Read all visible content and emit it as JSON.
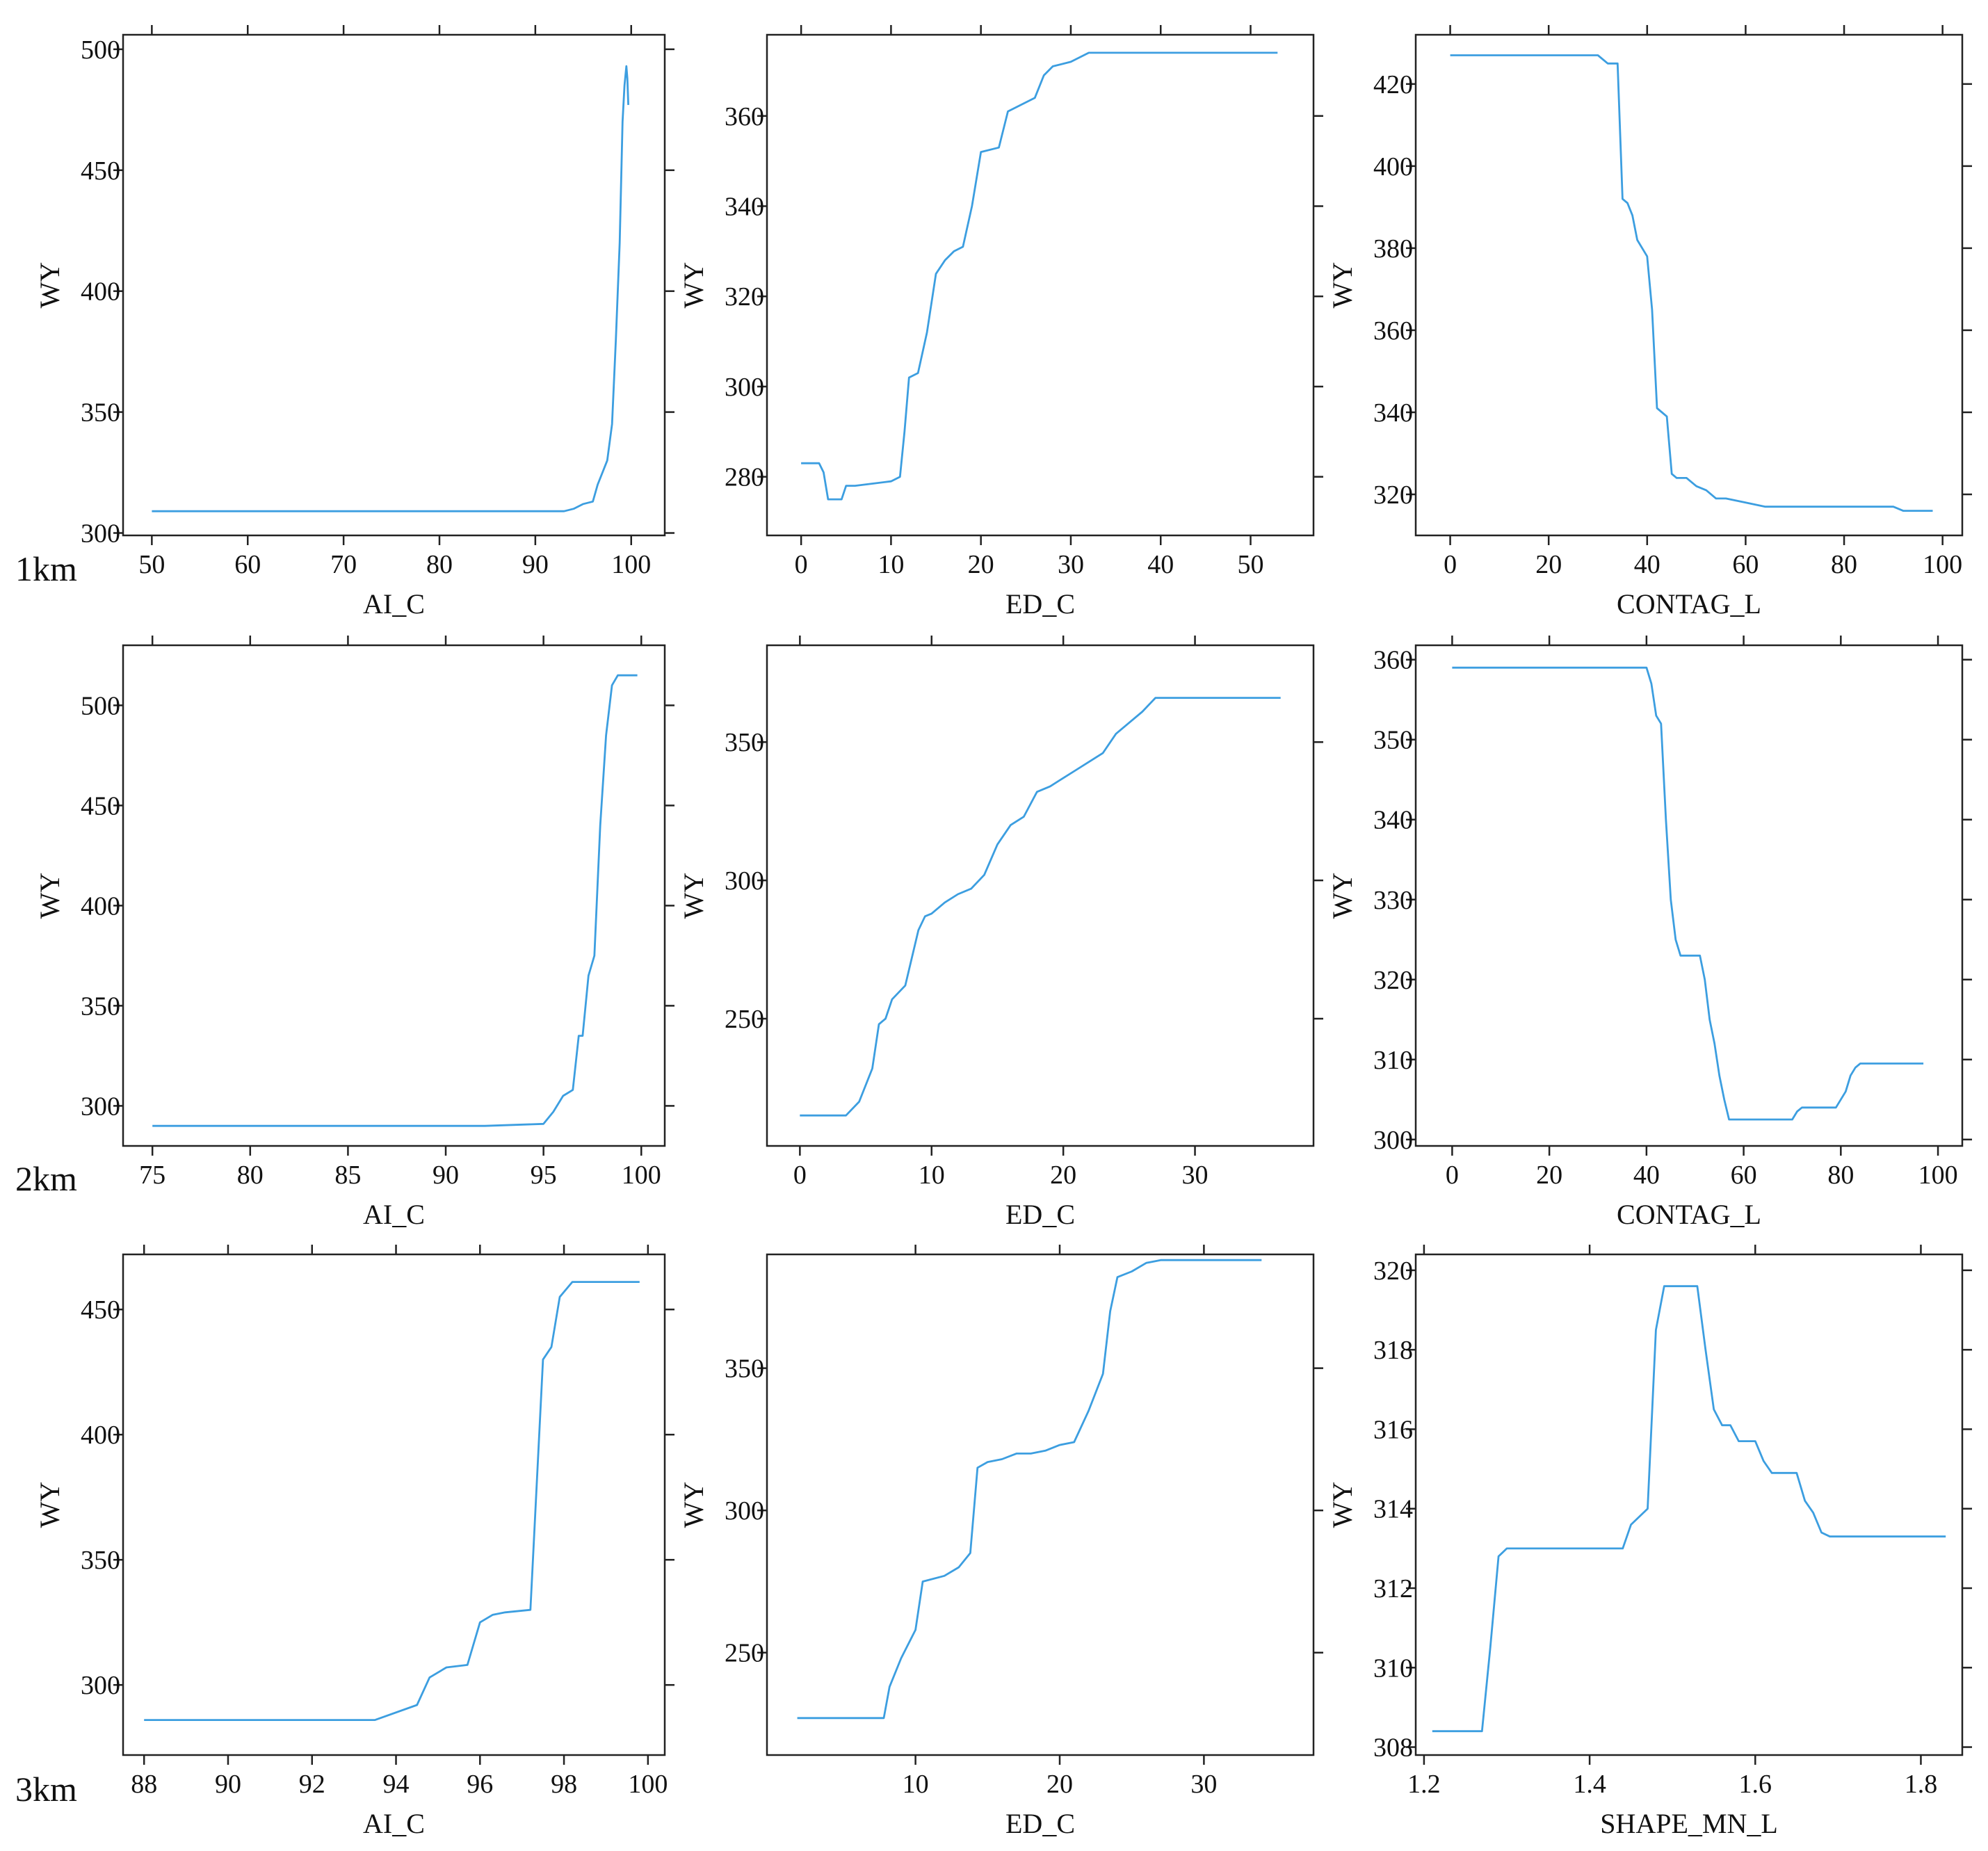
{
  "figure": {
    "line_color": "#3c9ee0",
    "row_labels": [
      "1km",
      "2km",
      "3km"
    ]
  },
  "chart_data": [
    {
      "type": "line",
      "title": "",
      "xlabel": "AI_C",
      "ylabel": "WY",
      "xlim": [
        47,
        103.5
      ],
      "ylim": [
        299,
        506
      ],
      "xticks": [
        50,
        60,
        70,
        80,
        90,
        100
      ],
      "yticks": [
        300,
        350,
        400,
        450,
        500
      ],
      "x": [
        50,
        93,
        94,
        95,
        96,
        96.5,
        97,
        97.5,
        98,
        98.4,
        98.8,
        99.1,
        99.3,
        99.5,
        99.6,
        99.7
      ],
      "y": [
        309,
        309,
        310,
        312,
        313,
        320,
        325,
        330,
        345,
        380,
        420,
        470,
        485,
        493,
        488,
        477
      ]
    },
    {
      "type": "line",
      "title": "",
      "xlabel": "ED_C",
      "ylabel": "WY",
      "xlim": [
        -3.8,
        57
      ],
      "ylim": [
        267,
        378
      ],
      "xticks": [
        0,
        10,
        20,
        30,
        40,
        50
      ],
      "yticks": [
        280,
        300,
        320,
        340,
        360
      ],
      "x": [
        0,
        2,
        2.5,
        3,
        4.5,
        5,
        6,
        10,
        11,
        11.5,
        12,
        13,
        14,
        15,
        16,
        17,
        18,
        19,
        20,
        22,
        23,
        24,
        26,
        27,
        28,
        30,
        31,
        32,
        53
      ],
      "y": [
        283,
        283,
        281,
        275,
        275,
        278,
        278,
        279,
        280,
        290,
        302,
        303,
        312,
        325,
        328,
        330,
        331,
        340,
        352,
        353,
        361,
        362,
        364,
        369,
        371,
        372,
        373,
        374,
        374
      ]
    },
    {
      "type": "line",
      "title": "",
      "xlabel": "CONTAG_L",
      "ylabel": "WY",
      "xlim": [
        -7,
        104
      ],
      "ylim": [
        310,
        432
      ],
      "xticks": [
        0,
        20,
        40,
        60,
        80,
        100
      ],
      "yticks": [
        320,
        340,
        360,
        380,
        400,
        420
      ],
      "x": [
        0,
        30,
        32,
        34,
        35,
        36,
        37,
        38,
        40,
        41,
        42,
        43,
        44,
        45,
        46,
        48,
        50,
        52,
        54,
        56,
        60,
        64,
        90,
        92,
        98
      ],
      "y": [
        427,
        427,
        425,
        425,
        392,
        391,
        388,
        382,
        378,
        365,
        341,
        340,
        339,
        325,
        324,
        324,
        322,
        321,
        319,
        319,
        318,
        317,
        317,
        316,
        316
      ]
    },
    {
      "type": "line",
      "title": "",
      "xlabel": "AI_C",
      "ylabel": "WY",
      "xlim": [
        73.5,
        101.2
      ],
      "ylim": [
        280,
        530
      ],
      "xticks": [
        75,
        80,
        85,
        90,
        95,
        100
      ],
      "yticks": [
        300,
        350,
        400,
        450,
        500
      ],
      "x": [
        75,
        92,
        95,
        95.5,
        96,
        96.5,
        96.8,
        97,
        97.3,
        97.6,
        97.9,
        98.2,
        98.5,
        98.8,
        99.1,
        99.4,
        99.8
      ],
      "y": [
        290,
        290,
        291,
        297,
        305,
        308,
        335,
        335,
        365,
        375,
        440,
        485,
        510,
        515,
        515,
        515,
        515
      ]
    },
    {
      "type": "line",
      "title": "",
      "xlabel": "ED_C",
      "ylabel": "WY",
      "xlim": [
        -2.5,
        39
      ],
      "ylim": [
        204,
        385
      ],
      "xticks": [
        0,
        10,
        20,
        30
      ],
      "yticks": [
        250,
        300,
        350
      ],
      "x": [
        0,
        3.5,
        4.5,
        5.5,
        6,
        6.5,
        7,
        8,
        9,
        9.5,
        10,
        11,
        12,
        13,
        14,
        15,
        16,
        17,
        18,
        19,
        20,
        21,
        22,
        23,
        24,
        25,
        26,
        27,
        36.5
      ],
      "y": [
        215,
        215,
        220,
        232,
        248,
        250,
        257,
        262,
        282,
        287,
        288,
        292,
        295,
        297,
        302,
        313,
        320,
        323,
        332,
        334,
        337,
        340,
        343,
        346,
        353,
        357,
        361,
        366,
        366
      ]
    },
    {
      "type": "line",
      "title": "",
      "xlabel": "CONTAG_L",
      "ylabel": "WY",
      "xlim": [
        -7.5,
        105
      ],
      "ylim": [
        299.2,
        361.8
      ],
      "xticks": [
        0,
        20,
        40,
        60,
        80,
        100
      ],
      "yticks": [
        300,
        310,
        320,
        330,
        340,
        350,
        360
      ],
      "x": [
        0,
        40,
        41,
        42,
        43,
        44,
        45,
        46,
        47,
        48,
        49,
        50,
        51,
        52,
        53,
        54,
        55,
        56,
        57,
        58,
        59,
        60,
        65,
        70,
        71,
        72,
        75,
        78,
        79,
        80,
        81,
        82,
        83,
        84,
        90,
        97
      ],
      "y": [
        359,
        359,
        357,
        353,
        352,
        340,
        330,
        325,
        323,
        323,
        323,
        323,
        323,
        320,
        315,
        312,
        308,
        305,
        302.5,
        302.5,
        302.5,
        302.5,
        302.5,
        302.5,
        303.5,
        304,
        304,
        304,
        304,
        305,
        306,
        308,
        309,
        309.5,
        309.5,
        309.5
      ]
    },
    {
      "type": "line",
      "title": "",
      "xlabel": "AI_C",
      "ylabel": "WY",
      "xlim": [
        87.5,
        100.4
      ],
      "ylim": [
        272,
        472
      ],
      "xticks": [
        88,
        90,
        92,
        94,
        96,
        98,
        100
      ],
      "yticks": [
        300,
        350,
        400,
        450
      ],
      "x": [
        88,
        93.5,
        94.5,
        94.8,
        95.2,
        95.7,
        96,
        96.3,
        96.6,
        97.2,
        97.5,
        97.7,
        97.9,
        98.2,
        99.8
      ],
      "y": [
        286,
        286,
        292,
        303,
        307,
        308,
        325,
        328,
        329,
        330,
        430,
        435,
        455,
        461,
        461
      ]
    },
    {
      "type": "line",
      "title": "",
      "xlabel": "ED_C",
      "ylabel": "WY",
      "xlim": [
        -0.3,
        37.6
      ],
      "ylim": [
        214,
        390
      ],
      "xticks": [
        10,
        20,
        30
      ],
      "yticks": [
        250,
        300,
        350
      ],
      "x": [
        1.8,
        7.8,
        8.2,
        9,
        10,
        10.5,
        12,
        13,
        13.8,
        14.3,
        15,
        16,
        17,
        18,
        19,
        20,
        21,
        22,
        23,
        23.5,
        24,
        25,
        26,
        27,
        34
      ],
      "y": [
        227,
        227,
        238,
        248,
        258,
        275,
        277,
        280,
        285,
        315,
        317,
        318,
        320,
        320,
        321,
        323,
        324,
        335,
        348,
        370,
        382,
        384,
        387,
        388,
        388
      ]
    },
    {
      "type": "line",
      "title": "",
      "xlabel": "SHAPE_MN_L",
      "ylabel": "WY",
      "xlim": [
        1.19,
        1.85
      ],
      "ylim": [
        307.8,
        320.4
      ],
      "xticks": [
        1.2,
        1.4,
        1.6,
        1.8
      ],
      "yticks": [
        308,
        310,
        312,
        314,
        316,
        318,
        320
      ],
      "x": [
        1.21,
        1.27,
        1.28,
        1.29,
        1.3,
        1.35,
        1.4,
        1.44,
        1.45,
        1.47,
        1.48,
        1.49,
        1.5,
        1.53,
        1.54,
        1.55,
        1.56,
        1.57,
        1.58,
        1.59,
        1.6,
        1.61,
        1.62,
        1.63,
        1.64,
        1.65,
        1.66,
        1.67,
        1.68,
        1.69,
        1.83
      ],
      "y": [
        308.4,
        308.4,
        310.5,
        312.8,
        313,
        313,
        313,
        313,
        313.6,
        314,
        318.5,
        319.6,
        319.6,
        319.6,
        318,
        316.5,
        316.1,
        316.1,
        315.7,
        315.7,
        315.7,
        315.2,
        314.9,
        314.9,
        314.9,
        314.9,
        314.2,
        313.9,
        313.4,
        313.3,
        313.3
      ]
    }
  ]
}
